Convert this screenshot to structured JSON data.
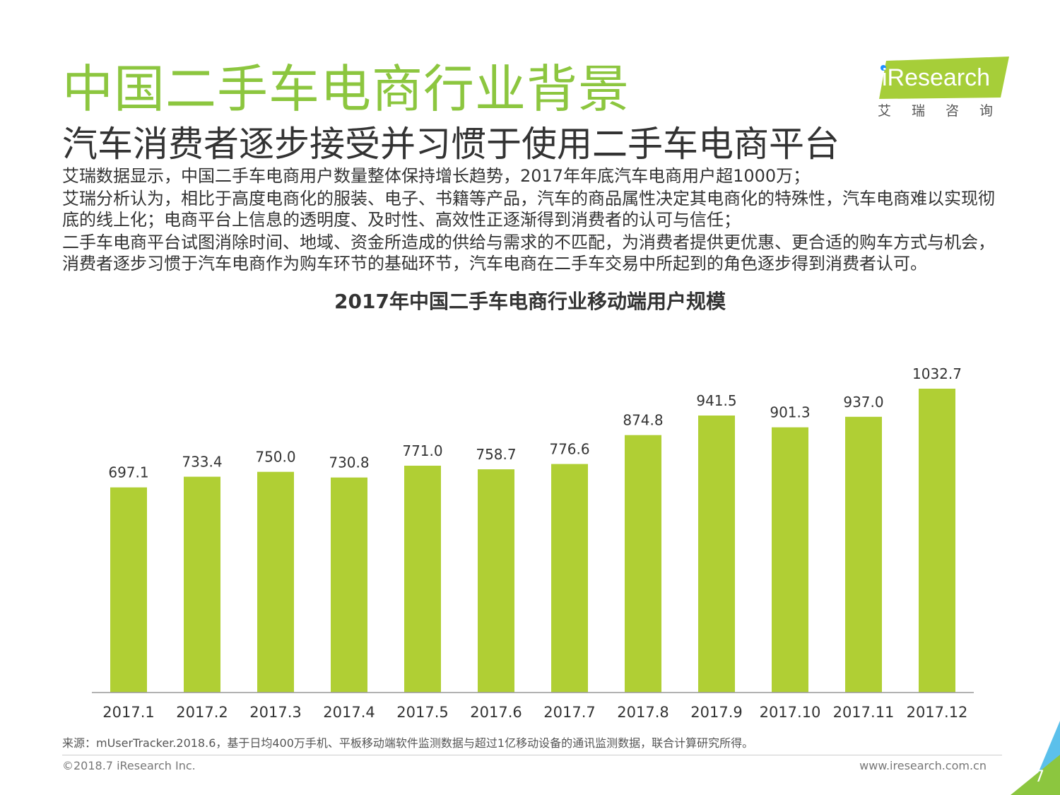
{
  "header": {
    "title": "中国二手车电商行业背景",
    "subtitle": "汽车消费者逐步接受并习惯于使用二手车电商平台"
  },
  "logo": {
    "brand": "iResearch",
    "chinese": "艾瑞咨询"
  },
  "body": {
    "paragraphs": [
      "艾瑞数据显示，中国二手车电商用户数量整体保持增长趋势，2017年年底汽车电商用户超1000万；",
      "艾瑞分析认为，相比于高度电商化的服装、电子、书籍等产品，汽车的商品属性决定其电商化的特殊性，汽车电商难以实现彻底的线上化；电商平台上信息的透明度、及时性、高效性正逐渐得到消费者的认可与信任；",
      "二手车电商平台试图消除时间、地域、资金所造成的供给与需求的不匹配，为消费者提供更优惠、更合适的购车方式与机会，消费者逐步习惯于汽车电商作为购车环节的基础环节，汽车电商在二手车交易中所起到的角色逐步得到消费者认可。"
    ]
  },
  "chart_data": {
    "type": "bar",
    "title": "2017年中国二手车电商行业移动端用户规模",
    "categories": [
      "2017.1",
      "2017.2",
      "2017.3",
      "2017.4",
      "2017.5",
      "2017.6",
      "2017.7",
      "2017.8",
      "2017.9",
      "2017.10",
      "2017.11",
      "2017.12"
    ],
    "values": [
      697.1,
      733.4,
      750.0,
      730.8,
      771.0,
      758.7,
      776.6,
      874.8,
      941.5,
      901.3,
      937.0,
      1032.7
    ],
    "value_labels": [
      "697.1",
      "733.4",
      "750.0",
      "730.8",
      "771.0",
      "758.7",
      "776.6",
      "874.8",
      "941.5",
      "901.3",
      "937.0",
      "1032.7"
    ],
    "ylim": [
      0,
      1032.7
    ],
    "bar_color": "#b0cf34",
    "grid": false,
    "legend": "none"
  },
  "footer": {
    "source": "来源：mUserTracker.2018.6，基于日均400万手机、平板移动端软件监测数据与超过1亿移动设备的通讯监测数据，联合计算研究所得。",
    "copyright": "©2018.7 iResearch Inc.",
    "website": "www.iresearch.com.cn",
    "page_number": "7"
  },
  "colors": {
    "title_green": "#8cc63f",
    "logo_green": "#a6ce39",
    "corner_blue": "#5bc0eb",
    "corner_green": "#8cc63f"
  }
}
